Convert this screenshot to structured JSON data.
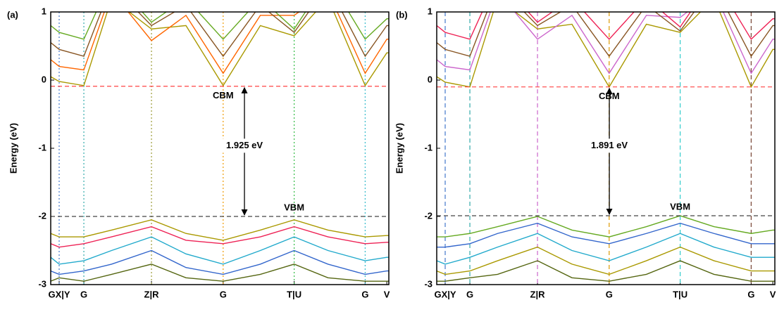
{
  "chart_data": [
    {
      "type": "line",
      "panel": "(a)",
      "y_label": "Energy (eV)",
      "xlim": [
        0,
        100
      ],
      "ylim": [
        -3,
        1
      ],
      "yticks": [
        -3,
        -2,
        -1,
        0,
        1
      ],
      "xticks": [
        {
          "value": 2.5,
          "label": "GX|Y"
        },
        {
          "value": 9.8,
          "label": "G"
        },
        {
          "value": 29.8,
          "label": "Z|R"
        },
        {
          "value": 51,
          "label": "G"
        },
        {
          "value": 72,
          "label": "T|U"
        },
        {
          "value": 93,
          "label": "G"
        },
        {
          "value": 99.4,
          "label": "V"
        }
      ],
      "vline_colors": [
        "#4477cc",
        "#33aaaa",
        "#999933",
        "#ee9900",
        "#33bb44",
        "#33bbcc"
      ],
      "hlines": [
        {
          "value": -0.09,
          "color": "#ff4444"
        },
        {
          "value": -2.0,
          "color": "#444444"
        }
      ],
      "cbm_label": "CBM",
      "vbm_label": "VBM",
      "gap_label": "1.925 eV",
      "x": [
        0,
        2.5,
        9.8,
        18,
        29.8,
        40,
        51,
        62,
        72,
        82,
        93,
        99.4,
        100
      ],
      "series": [
        {
          "color": "#aa9900",
          "values": [
            0.05,
            -0.02,
            -0.08,
            1.2,
            0.75,
            0.8,
            -0.08,
            0.8,
            0.65,
            1.2,
            -0.08,
            0.4,
            0.4
          ]
        },
        {
          "color": "#ff6600",
          "values": [
            0.3,
            0.2,
            0.15,
            1.3,
            0.58,
            0.95,
            0.1,
            0.95,
            0.95,
            1.3,
            0.1,
            0.6,
            0.6
          ]
        },
        {
          "color": "#885522",
          "values": [
            0.55,
            0.45,
            0.35,
            1.4,
            0.8,
            1.1,
            0.35,
            1.1,
            0.7,
            1.4,
            0.35,
            0.8,
            0.8
          ]
        },
        {
          "color": "#66aa22",
          "values": [
            0.8,
            0.7,
            0.6,
            1.5,
            0.85,
            1.2,
            0.6,
            1.2,
            0.75,
            1.5,
            0.6,
            0.9,
            0.9
          ]
        },
        {
          "color": "#aa9900",
          "values": [
            -2.25,
            -2.3,
            -2.3,
            -2.2,
            -2.05,
            -2.25,
            -2.35,
            -2.2,
            -2.05,
            -2.2,
            -2.3,
            -2.28,
            -2.28
          ]
        },
        {
          "color": "#ee2255",
          "values": [
            -2.4,
            -2.45,
            -2.4,
            -2.3,
            -2.15,
            -2.35,
            -2.4,
            -2.3,
            -2.15,
            -2.3,
            -2.4,
            -2.38,
            -2.38
          ]
        },
        {
          "color": "#22aacc",
          "values": [
            -2.6,
            -2.7,
            -2.65,
            -2.5,
            -2.3,
            -2.55,
            -2.7,
            -2.5,
            -2.3,
            -2.5,
            -2.65,
            -2.6,
            -2.6
          ]
        },
        {
          "color": "#3366cc",
          "values": [
            -2.8,
            -2.85,
            -2.8,
            -2.7,
            -2.5,
            -2.75,
            -2.85,
            -2.7,
            -2.5,
            -2.7,
            -2.85,
            -2.8,
            -2.8
          ]
        },
        {
          "color": "#556611",
          "values": [
            -2.95,
            -2.9,
            -2.95,
            -2.85,
            -2.7,
            -2.9,
            -2.95,
            -2.85,
            -2.7,
            -2.9,
            -2.95,
            -2.95,
            -2.95
          ]
        }
      ]
    },
    {
      "type": "line",
      "panel": "(b)",
      "y_label": "Energy (eV)",
      "xlim": [
        0,
        100
      ],
      "ylim": [
        -3,
        1
      ],
      "yticks": [
        -3,
        -2,
        -1,
        0,
        1
      ],
      "xticks": [
        {
          "value": 2.5,
          "label": "GX|Y"
        },
        {
          "value": 9.8,
          "label": "G"
        },
        {
          "value": 29.8,
          "label": "Z|R"
        },
        {
          "value": 51,
          "label": "G"
        },
        {
          "value": 72,
          "label": "T|U"
        },
        {
          "value": 93,
          "label": "G"
        },
        {
          "value": 99.4,
          "label": "V"
        }
      ],
      "vline_colors": [
        "#4477cc",
        "#33aaaa",
        "#cc66cc",
        "#dd9900",
        "#33cccc",
        "#774433"
      ],
      "hlines": [
        {
          "value": -0.1,
          "color": "#ff4444"
        },
        {
          "value": -1.99,
          "color": "#444444"
        }
      ],
      "cbm_label": "CBM",
      "vbm_label": "VBM",
      "gap_label": "1.891 eV",
      "x": [
        0,
        2.5,
        9.8,
        18,
        29.8,
        40,
        51,
        62,
        72,
        82,
        93,
        99.4,
        100
      ],
      "series": [
        {
          "color": "#aa9900",
          "values": [
            0.05,
            -0.03,
            -0.1,
            1.2,
            0.75,
            0.82,
            -0.1,
            0.82,
            0.7,
            1.2,
            -0.1,
            0.45,
            0.45
          ]
        },
        {
          "color": "#cc66cc",
          "values": [
            0.3,
            0.2,
            0.15,
            1.3,
            0.6,
            0.95,
            0.1,
            0.95,
            0.92,
            1.3,
            0.1,
            0.6,
            0.6
          ]
        },
        {
          "color": "#885522",
          "values": [
            0.55,
            0.45,
            0.35,
            1.4,
            0.8,
            1.1,
            0.35,
            1.1,
            0.72,
            1.4,
            0.35,
            0.8,
            0.8
          ]
        },
        {
          "color": "#ee2255",
          "values": [
            0.8,
            0.7,
            0.6,
            1.5,
            0.85,
            1.2,
            0.6,
            1.2,
            0.78,
            1.5,
            0.6,
            0.9,
            0.9
          ]
        },
        {
          "color": "#66aa22",
          "values": [
            -2.3,
            -2.3,
            -2.25,
            -2.15,
            -2.0,
            -2.2,
            -2.3,
            -2.15,
            -1.99,
            -2.15,
            -2.25,
            -2.2,
            -2.2
          ]
        },
        {
          "color": "#3366cc",
          "values": [
            -2.45,
            -2.45,
            -2.4,
            -2.25,
            -2.1,
            -2.3,
            -2.4,
            -2.25,
            -2.1,
            -2.25,
            -2.4,
            -2.4,
            -2.4
          ]
        },
        {
          "color": "#22aacc",
          "values": [
            -2.65,
            -2.7,
            -2.6,
            -2.45,
            -2.25,
            -2.5,
            -2.65,
            -2.45,
            -2.25,
            -2.45,
            -2.6,
            -2.6,
            -2.6
          ]
        },
        {
          "color": "#aa9900",
          "values": [
            -2.8,
            -2.85,
            -2.8,
            -2.65,
            -2.45,
            -2.7,
            -2.85,
            -2.65,
            -2.45,
            -2.65,
            -2.8,
            -2.8,
            -2.8
          ]
        },
        {
          "color": "#556611",
          "values": [
            -2.95,
            -2.95,
            -2.9,
            -2.85,
            -2.65,
            -2.9,
            -2.95,
            -2.85,
            -2.65,
            -2.85,
            -2.95,
            -2.95,
            -2.95
          ]
        }
      ]
    }
  ]
}
